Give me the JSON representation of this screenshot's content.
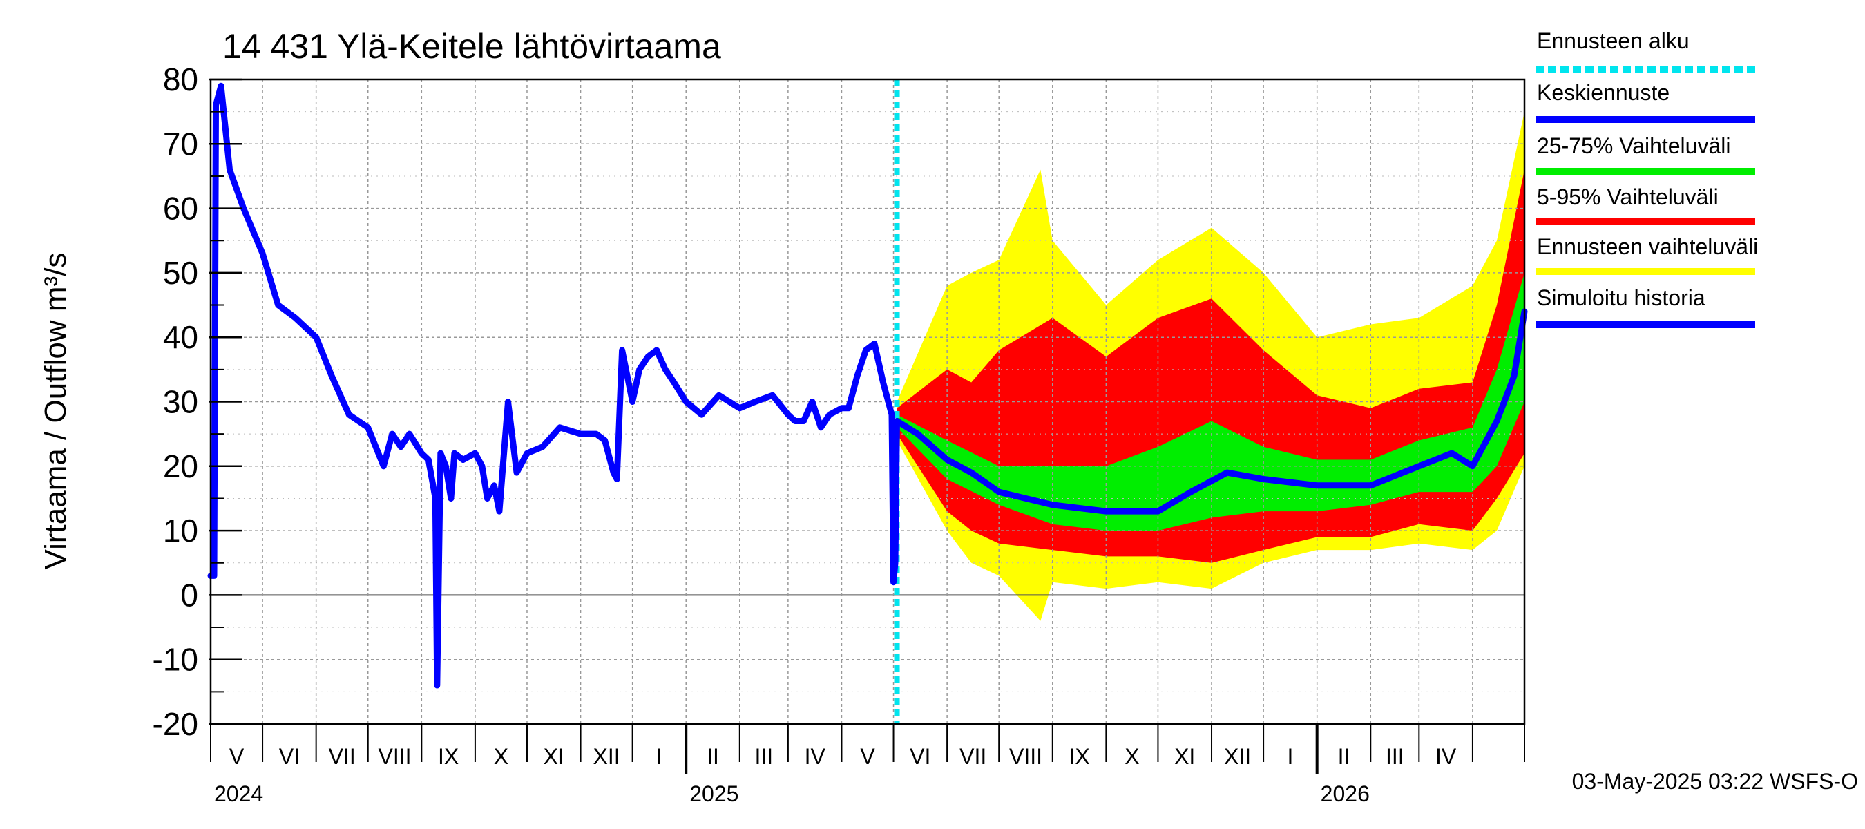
{
  "chart_data": {
    "type": "area",
    "title": "14 431 Ylä-Keitele lähtövirtaama",
    "ylabel": "Virtaama / Outflow    m³/s",
    "ylim": [
      -20,
      80
    ],
    "yticks": [
      -20,
      -10,
      0,
      10,
      20,
      30,
      40,
      50,
      60,
      70,
      80
    ],
    "xlim": [
      "2024-04-01",
      "2026-05-01"
    ],
    "month_labels": [
      "V",
      "VI",
      "VII",
      "VIII",
      "IX",
      "X",
      "XI",
      "XII",
      "I",
      "II",
      "III",
      "IV",
      "V",
      "VI",
      "VII",
      "VIII",
      "IX",
      "X",
      "XI",
      "XII",
      "I",
      "II",
      "III",
      "IV"
    ],
    "year_labels": [
      "2024",
      "2025",
      "2026"
    ],
    "forecast_start": "2025-05-03",
    "footer": "03-May-2025 03:22 WSFS-O",
    "colors": {
      "forecast_start": "#00e5ee",
      "mean": "#0000ff",
      "p25_75": "#00ee00",
      "p5_95": "#ff0000",
      "range": "#ffff00",
      "history": "#0000ff"
    },
    "legend": [
      {
        "label": "Ennusteen alku",
        "color": "#00e5ee",
        "style": "dashed"
      },
      {
        "label": "Keskiennuste",
        "color": "#0000ff",
        "style": "solid"
      },
      {
        "label": "25-75% Vaihteluväli",
        "color": "#00ee00",
        "style": "solid"
      },
      {
        "label": "5-95% Vaihteluväli",
        "color": "#ff0000",
        "style": "solid"
      },
      {
        "label": "Ennusteen vaihteluväli",
        "color": "#ffff00",
        "style": "solid"
      },
      {
        "label": "Simuloitu historia",
        "color": "#0000ff",
        "style": "solid"
      }
    ],
    "series": [
      {
        "name": "Simuloitu historia",
        "x": [
          "2024-04-01",
          "2024-04-03",
          "2024-04-04",
          "2024-04-07",
          "2024-04-12",
          "2024-04-20",
          "2024-05-01",
          "2024-05-10",
          "2024-05-20",
          "2024-06-01",
          "2024-06-10",
          "2024-06-20",
          "2024-07-01",
          "2024-07-10",
          "2024-07-15",
          "2024-07-20",
          "2024-07-25",
          "2024-08-01",
          "2024-08-05",
          "2024-08-09",
          "2024-08-10",
          "2024-08-12",
          "2024-08-15",
          "2024-08-18",
          "2024-08-20",
          "2024-08-25",
          "2024-09-01",
          "2024-09-05",
          "2024-09-08",
          "2024-09-12",
          "2024-09-15",
          "2024-09-20",
          "2024-09-25",
          "2024-10-01",
          "2024-10-10",
          "2024-10-20",
          "2024-11-01",
          "2024-11-10",
          "2024-11-15",
          "2024-11-20",
          "2024-11-22",
          "2024-11-25",
          "2024-12-01",
          "2024-12-05",
          "2024-12-10",
          "2024-12-15",
          "2024-12-20",
          "2024-12-25",
          "2025-01-01",
          "2025-01-10",
          "2025-01-20",
          "2025-02-01",
          "2025-02-10",
          "2025-02-20",
          "2025-03-01",
          "2025-03-05",
          "2025-03-10",
          "2025-03-15",
          "2025-03-20",
          "2025-03-25",
          "2025-04-01",
          "2025-04-05",
          "2025-04-10",
          "2025-04-15",
          "2025-04-20",
          "2025-04-25",
          "2025-04-28",
          "2025-04-30",
          "2025-05-01",
          "2025-05-02",
          "2025-05-03"
        ],
        "y": [
          3,
          3,
          76,
          79,
          66,
          60,
          53,
          45,
          43,
          40,
          34,
          28,
          26,
          20,
          25,
          23,
          25,
          22,
          21,
          15,
          -14,
          22,
          20,
          15,
          22,
          21,
          22,
          20,
          15,
          17,
          13,
          30,
          19,
          22,
          23,
          26,
          25,
          25,
          24,
          19,
          18,
          38,
          30,
          35,
          37,
          38,
          35,
          33,
          30,
          28,
          31,
          29,
          30,
          31,
          28,
          27,
          27,
          30,
          26,
          28,
          29,
          29,
          34,
          38,
          39,
          33,
          30,
          28,
          2,
          5,
          27
        ]
      },
      {
        "name": "Keskiennuste",
        "x": [
          "2025-05-03",
          "2025-05-15",
          "2025-06-01",
          "2025-06-15",
          "2025-07-01",
          "2025-08-01",
          "2025-09-01",
          "2025-10-01",
          "2025-10-20",
          "2025-11-10",
          "2025-12-01",
          "2026-01-01",
          "2026-02-01",
          "2026-03-01",
          "2026-03-20",
          "2026-04-01",
          "2026-04-15",
          "2026-04-25",
          "2026-05-01"
        ],
        "y": [
          27,
          25,
          21,
          19,
          16,
          14,
          13,
          13,
          16,
          19,
          18,
          17,
          17,
          20,
          22,
          20,
          27,
          34,
          44
        ]
      },
      {
        "name": "25-75% Vaihteluväli",
        "x": [
          "2025-05-03",
          "2025-06-01",
          "2025-07-01",
          "2025-08-01",
          "2025-09-01",
          "2025-10-01",
          "2025-11-01",
          "2025-12-01",
          "2026-01-01",
          "2026-02-01",
          "2026-03-01",
          "2026-04-01",
          "2026-04-15",
          "2026-05-01"
        ],
        "low": [
          26,
          18,
          14,
          11,
          10,
          10,
          12,
          13,
          13,
          14,
          16,
          16,
          20,
          30
        ],
        "high": [
          28,
          24,
          20,
          20,
          20,
          23,
          27,
          23,
          21,
          21,
          24,
          26,
          35,
          50
        ]
      },
      {
        "name": "5-95% Vaihteluväli",
        "x": [
          "2025-05-03",
          "2025-06-01",
          "2025-06-15",
          "2025-07-01",
          "2025-08-01",
          "2025-09-01",
          "2025-10-01",
          "2025-11-01",
          "2025-12-01",
          "2026-01-01",
          "2026-02-01",
          "2026-03-01",
          "2026-04-01",
          "2026-04-15",
          "2026-05-01"
        ],
        "low": [
          25,
          13,
          10,
          8,
          7,
          6,
          6,
          5,
          7,
          9,
          9,
          11,
          10,
          15,
          22
        ],
        "high": [
          29,
          35,
          33,
          38,
          43,
          37,
          43,
          46,
          38,
          31,
          29,
          32,
          33,
          45,
          66
        ]
      },
      {
        "name": "Ennusteen vaihteluväli",
        "x": [
          "2025-05-03",
          "2025-06-01",
          "2025-06-15",
          "2025-07-01",
          "2025-07-25",
          "2025-08-01",
          "2025-09-01",
          "2025-10-01",
          "2025-11-01",
          "2025-12-01",
          "2026-01-01",
          "2026-02-01",
          "2026-03-01",
          "2026-04-01",
          "2026-04-15",
          "2026-05-01"
        ],
        "low": [
          24,
          10,
          5,
          3,
          -4,
          2,
          1,
          2,
          1,
          5,
          7,
          7,
          8,
          7,
          10,
          20
        ],
        "high": [
          30,
          48,
          50,
          52,
          66,
          55,
          45,
          52,
          57,
          50,
          40,
          42,
          43,
          48,
          55,
          75
        ]
      }
    ]
  }
}
